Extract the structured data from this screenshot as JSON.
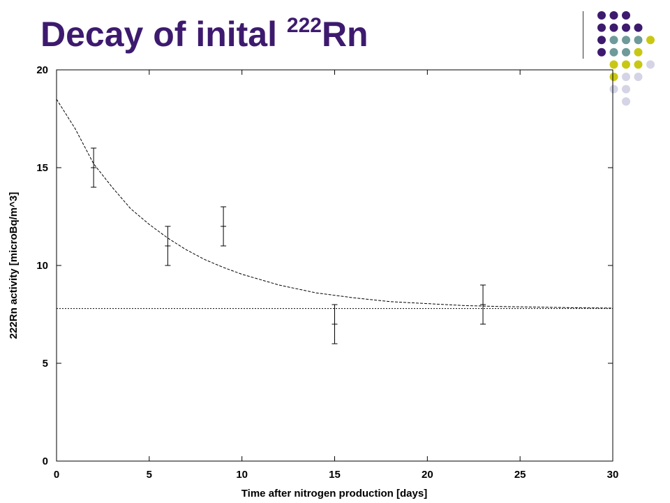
{
  "slide": {
    "title_main": "Decay of inital ",
    "title_sup": "222",
    "title_end": "Rn"
  },
  "decoration": {
    "colors": {
      "purple": "#3d1a6e",
      "teal": "#6e9a9a",
      "yellow": "#c8c814",
      "lavender": "#d4d4e6"
    },
    "dots": [
      [
        "purple",
        "purple",
        "purple",
        null,
        null
      ],
      [
        "purple",
        "purple",
        "purple",
        "purple",
        null
      ],
      [
        "purple",
        "teal",
        "teal",
        "teal",
        "yellow"
      ],
      [
        "purple",
        "teal",
        "teal",
        "yellow",
        null
      ],
      [
        null,
        "yellow",
        "yellow",
        "yellow",
        "lavender"
      ],
      [
        null,
        "yellow",
        "lavender",
        "lavender",
        null
      ],
      [
        null,
        "lavender",
        "lavender",
        null,
        null
      ],
      [
        null,
        null,
        "lavender",
        null,
        null
      ]
    ]
  },
  "chart_data": {
    "type": "scatter",
    "title": "",
    "xlabel": "Time after nitrogen production [days]",
    "ylabel": "222Rn activity [microBq/m^3]",
    "xlim": [
      0,
      30
    ],
    "ylim": [
      0,
      20
    ],
    "xticks": [
      0,
      5,
      10,
      15,
      20,
      25,
      30
    ],
    "yticks": [
      0,
      5,
      10,
      15,
      20
    ],
    "grid": false,
    "points": [
      {
        "x": 2,
        "y": 15,
        "err": 1
      },
      {
        "x": 6,
        "y": 11,
        "err": 1
      },
      {
        "x": 9,
        "y": 12,
        "err": 1
      },
      {
        "x": 15,
        "y": 7,
        "err": 1
      },
      {
        "x": 23,
        "y": 8,
        "err": 1
      }
    ],
    "fit_curve": {
      "style": "dashed",
      "x": [
        0,
        1,
        2,
        3,
        4,
        5,
        6,
        7,
        8,
        9,
        10,
        12,
        14,
        16,
        18,
        20,
        22,
        24,
        26,
        28,
        30
      ],
      "y": [
        18.5,
        17.0,
        15.2,
        14.0,
        12.9,
        12.1,
        11.4,
        10.8,
        10.3,
        9.9,
        9.55,
        9.0,
        8.6,
        8.35,
        8.15,
        8.05,
        7.95,
        7.9,
        7.87,
        7.84,
        7.82
      ]
    },
    "baseline": {
      "style": "dotted",
      "y": 7.8
    }
  }
}
